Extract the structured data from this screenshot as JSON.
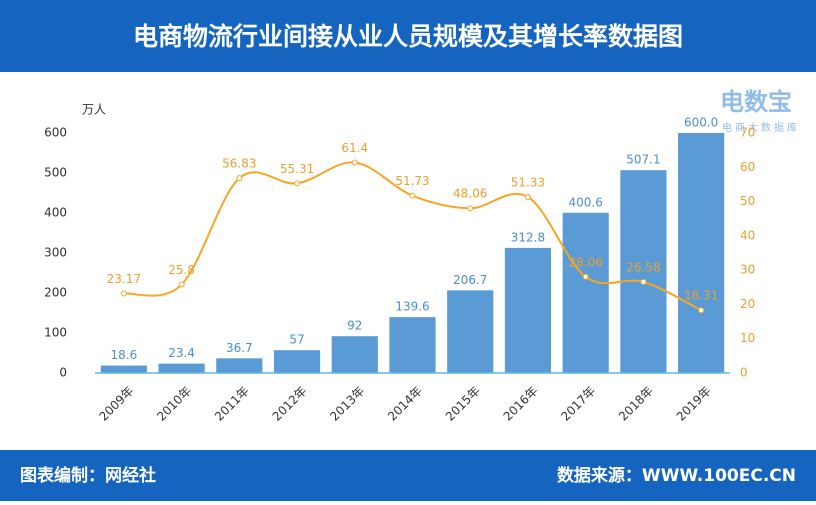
{
  "chart_data": {
    "type": "bar-line",
    "title": "电商物流行业间接从业人员规模及其增长率数据图",
    "y_label": "万人",
    "categories": [
      "2009年",
      "2010年",
      "2011年",
      "2012年",
      "2013年",
      "2014年",
      "2015年",
      "2016年",
      "2017年",
      "2018年",
      "2019年"
    ],
    "series": [
      {
        "type": "bar",
        "color": "#5b9bd5",
        "values": [
          18.6,
          23.4,
          36.7,
          57,
          92,
          139.6,
          206.7,
          312.8,
          400.6,
          507.1,
          600
        ],
        "value_labels": [
          "18.6",
          "23.4",
          "36.7",
          "57",
          "92",
          "139.6",
          "206.7",
          "312.8",
          "400.6",
          "507.1",
          "600.0"
        ]
      },
      {
        "type": "line",
        "axis": "y2",
        "color": "#f5a623",
        "values": [
          23.17,
          25.8,
          56.83,
          55.31,
          61.4,
          51.73,
          48.06,
          51.33,
          28.06,
          26.58,
          18.31
        ]
      }
    ],
    "ylim": [
      0,
      600
    ],
    "yticks": [
      0,
      100,
      200,
      300,
      400,
      500,
      600
    ],
    "y2lim": [
      0,
      70
    ],
    "y2ticks": [
      0,
      10,
      20,
      30,
      40,
      50,
      60,
      70
    ]
  },
  "footer": {
    "left": "图表编制：网经社",
    "right": "数据来源：WWW.100EC.CN"
  },
  "watermark": {
    "name": "电数宝",
    "tagline": "电商大数据库"
  }
}
